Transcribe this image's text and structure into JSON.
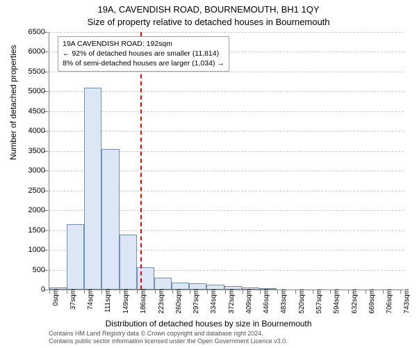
{
  "titles": {
    "line1": "19A, CAVENDISH ROAD, BOURNEMOUTH, BH1 1QY",
    "line2": "Size of property relative to detached houses in Bournemouth"
  },
  "chart": {
    "type": "histogram",
    "y_axis": {
      "label": "Number of detached properties",
      "min": 0,
      "max": 6500,
      "step": 500
    },
    "x_axis": {
      "label": "Distribution of detached houses by size in Bournemouth",
      "tick_labels": [
        "0sqm",
        "37sqm",
        "74sqm",
        "111sqm",
        "149sqm",
        "186sqm",
        "223sqm",
        "260sqm",
        "297sqm",
        "334sqm",
        "372sqm",
        "409sqm",
        "446sqm",
        "483sqm",
        "520sqm",
        "557sqm",
        "594sqm",
        "632sqm",
        "669sqm",
        "706sqm",
        "743sqm"
      ],
      "tick_values_sqm": [
        0,
        37,
        74,
        111,
        149,
        186,
        223,
        260,
        297,
        334,
        372,
        409,
        446,
        483,
        520,
        557,
        594,
        632,
        669,
        706,
        743
      ],
      "max_sqm": 750
    },
    "bars": {
      "start_sqm": 0,
      "bin_width_sqm": 37,
      "fill_color": "#dbe7f5",
      "border_color": "#6f8fb8",
      "values": [
        60,
        1650,
        5100,
        3550,
        1380,
        560,
        300,
        180,
        150,
        130,
        80,
        60,
        40,
        0,
        0,
        0,
        0,
        0,
        0,
        0
      ]
    },
    "reference_line": {
      "sqm": 192,
      "color": "#ff0000"
    },
    "grid_color": "#c8c8c8",
    "axis_color": "#808080",
    "background_color": "#ffffff"
  },
  "annotation": {
    "line1": "19A CAVENDISH ROAD: 192sqm",
    "line2": "← 92% of detached houses are smaller (11,814)",
    "line3": "8% of semi-detached houses are larger (1,034) →"
  },
  "footer": {
    "line1": "Contains HM Land Registry data © Crown copyright and database right 2024.",
    "line2": "Contains public sector information licensed under the Open Government Licence v3.0."
  }
}
